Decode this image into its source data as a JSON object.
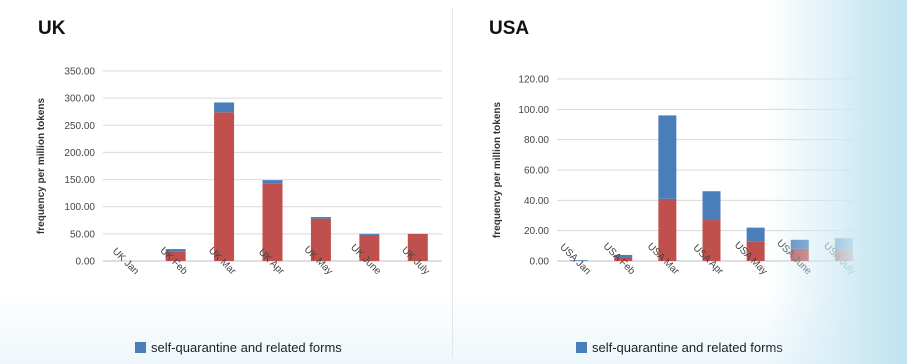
{
  "colors": {
    "self_quarantine": "#4a7ebb",
    "other": "#c0504d",
    "grid": "#d9d9d9",
    "axis": "#bfbfbf"
  },
  "chart_data": [
    {
      "type": "bar",
      "stacked": true,
      "title": "UK",
      "ylabel": "frequency per million tokens",
      "xlabel": "",
      "ylim": [
        0,
        350
      ],
      "yticks": [
        "0.00",
        "50.00",
        "100.00",
        "150.00",
        "200.00",
        "250.00",
        "300.00",
        "350.00"
      ],
      "categories": [
        "UK Jan",
        "UK Feb",
        "UK Mar",
        "UK Apr",
        "UK May",
        "UK June",
        "UK July"
      ],
      "series": [
        {
          "values": [
            0,
            18,
            274,
            143,
            78,
            48,
            50
          ]
        },
        {
          "name": "self-quarantine and related forms",
          "values": [
            0,
            4,
            18,
            6,
            3,
            2,
            0
          ]
        }
      ],
      "legend": "bottom",
      "grid": true
    },
    {
      "type": "bar",
      "stacked": true,
      "title": "USA",
      "ylabel": "frequency per million tokens",
      "xlabel": "",
      "ylim": [
        0,
        120
      ],
      "yticks": [
        "0.00",
        "20.00",
        "40.00",
        "60.00",
        "80.00",
        "100.00",
        "120.00"
      ],
      "categories": [
        "USA Jan",
        "USA Feb",
        "USA Mar",
        "USA Apr",
        "USA May",
        "USA June",
        "USA July"
      ],
      "series": [
        {
          "values": [
            0,
            2,
            41,
            27,
            13,
            8,
            8
          ]
        },
        {
          "name": "self-quarantine and related forms",
          "values": [
            0.5,
            2,
            55,
            19,
            9,
            6,
            7
          ]
        }
      ],
      "legend": "bottom",
      "grid": true
    }
  ]
}
